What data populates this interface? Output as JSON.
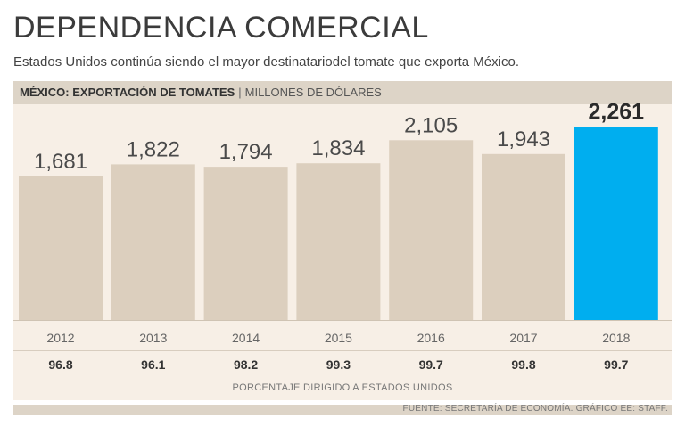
{
  "header": {
    "title": "DEPENDENCIA COMERCIAL",
    "subtitle": "Estados Unidos continúa siendo el mayor destinatariodel tomate que exporta México."
  },
  "label_bar": {
    "main": "MÉXICO: EXPORTACIÓN DE TOMATES",
    "separator": "|",
    "unit": "MILLONES DE DÓLARES"
  },
  "chart_data": {
    "type": "bar",
    "title": "MÉXICO: EXPORTACIÓN DE TOMATES",
    "ylabel": "MILLONES DE DÓLARES",
    "xlabel": "",
    "categories": [
      "2012",
      "2013",
      "2014",
      "2015",
      "2016",
      "2017",
      "2018"
    ],
    "values": [
      1681,
      1822,
      1794,
      1834,
      2105,
      1943,
      2261
    ],
    "value_labels": [
      "1,681",
      "1,822",
      "1,794",
      "1,834",
      "2,105",
      "1,943",
      "2,261"
    ],
    "highlight_category": "2018",
    "ylim": [
      0,
      2400
    ],
    "grid": false,
    "secondary_row": {
      "label": "PORCENTAJE DIRIGIDO A ESTADOS UNIDOS",
      "values": [
        "96.8",
        "96.1",
        "98.2",
        "99.3",
        "99.7",
        "99.8",
        "99.7"
      ]
    }
  },
  "footer": {
    "source": "FUENTE: SECRETARÍA DE ECONOMÍA. GRÁFICO EE: STAFF."
  },
  "colors": {
    "bar": "#dccfbe",
    "bar_highlight": "#00aeef",
    "panel": "#f7efe6",
    "band": "#ddd4c7"
  }
}
